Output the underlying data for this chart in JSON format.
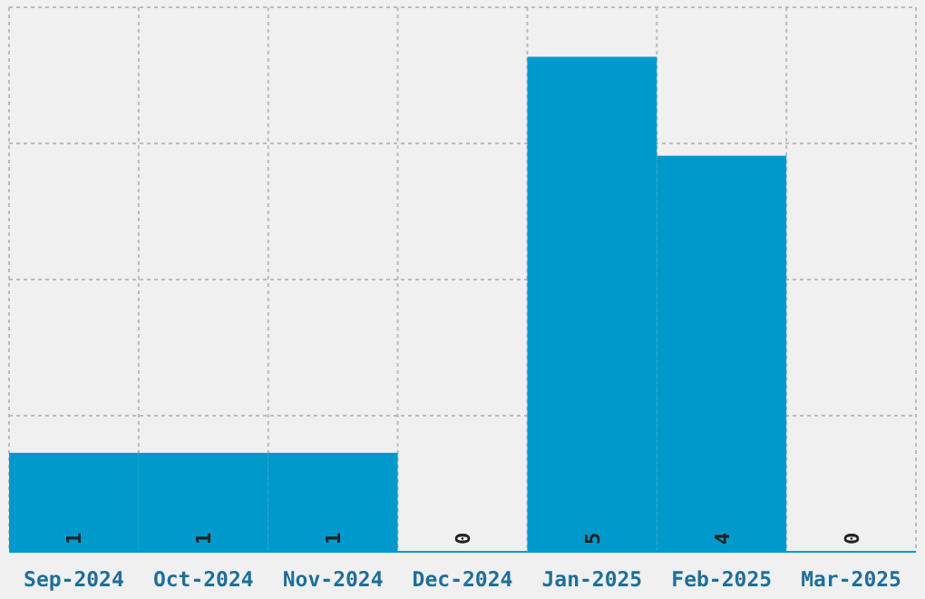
{
  "chart_data": {
    "type": "bar",
    "categories": [
      "Sep-2024",
      "Oct-2024",
      "Nov-2024",
      "Dec-2024",
      "Jan-2025",
      "Feb-2025",
      "Mar-2025"
    ],
    "values": [
      1,
      1,
      1,
      0,
      5,
      4,
      0
    ],
    "color": "#0099cc",
    "ylim": [
      0,
      5.5
    ],
    "yticks": [
      {
        "value": 0,
        "label": null
      },
      {
        "value": 1.375,
        "label": null
      },
      {
        "value": 2.75,
        "label": null
      },
      {
        "value": 4.125,
        "label": null
      },
      {
        "value": 5.5,
        "label": null
      }
    ],
    "grid": true,
    "data_labels": true,
    "tick_labels": "x"
  }
}
